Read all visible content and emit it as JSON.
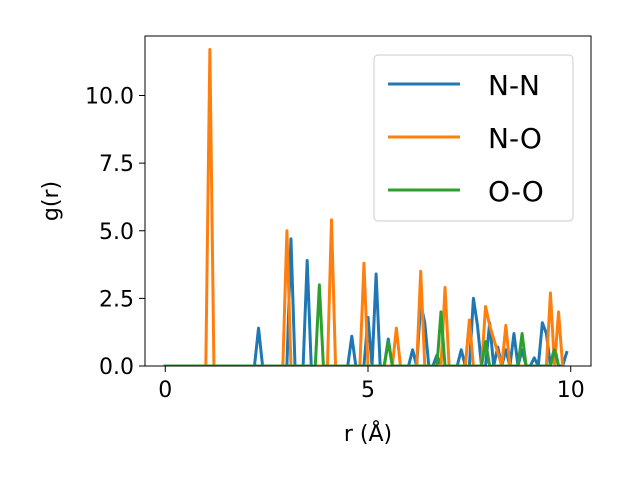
{
  "chart_data": {
    "type": "line",
    "title": "",
    "xlabel": "r (Å)",
    "ylabel": "g(r)",
    "xlim": [
      -0.5,
      10.5
    ],
    "ylim": [
      0,
      12.2
    ],
    "xticks": [
      0,
      5,
      10
    ],
    "xtick_labels": [
      "0",
      "5",
      "10"
    ],
    "yticks": [
      0.0,
      2.5,
      5.0,
      7.5,
      10.0
    ],
    "ytick_labels": [
      "0.0",
      "2.5",
      "5.0",
      "7.5",
      "10.0"
    ],
    "grid": false,
    "legend_position": "top-right",
    "series": [
      {
        "name": "N-N",
        "color": "#1f77b4",
        "x": [
          0,
          2.2,
          2.3,
          2.4,
          3.0,
          3.1,
          3.2,
          3.4,
          3.5,
          3.6,
          4.5,
          4.6,
          4.7,
          4.9,
          5.0,
          5.1,
          5.2,
          5.3,
          5.4,
          5.5,
          5.6,
          5.7,
          6.0,
          6.1,
          6.2,
          6.3,
          6.4,
          6.5,
          6.6,
          6.7,
          6.8,
          6.9,
          7.2,
          7.3,
          7.4,
          7.5,
          7.6,
          7.7,
          7.8,
          7.9,
          8.0,
          8.1,
          8.2,
          8.3,
          8.4,
          8.5,
          8.6,
          8.7,
          8.8,
          8.9,
          9.0,
          9.1,
          9.2,
          9.3,
          9.4,
          9.5,
          9.6,
          9.7,
          9.8,
          9.9
        ],
        "y": [
          0,
          0,
          1.4,
          0,
          0,
          4.7,
          0,
          0,
          3.9,
          0,
          0,
          1.1,
          0,
          0,
          1.8,
          0,
          3.4,
          0,
          0,
          1.0,
          0,
          0,
          0,
          0.6,
          0,
          2.3,
          1.6,
          0,
          0,
          0.4,
          0,
          0,
          0,
          0.6,
          0,
          0,
          2.5,
          1.5,
          0,
          0,
          1.6,
          0,
          0.7,
          0,
          0.6,
          0,
          1.2,
          0,
          0.6,
          0,
          0,
          0.3,
          0,
          1.6,
          1.2,
          0,
          0.7,
          0,
          0,
          0.5
        ]
      },
      {
        "name": "N-O",
        "color": "#ff7f0e",
        "x": [
          0,
          1.0,
          1.1,
          1.2,
          2.9,
          3.0,
          3.1,
          3.9,
          4.0,
          4.1,
          4.2,
          4.8,
          4.9,
          5.0,
          5.6,
          5.7,
          5.8,
          6.2,
          6.3,
          6.4,
          6.8,
          6.9,
          7.0,
          7.4,
          7.5,
          7.6,
          7.8,
          7.9,
          8.0,
          8.3,
          8.4,
          8.5,
          9.4,
          9.5,
          9.6,
          9.7,
          9.8
        ],
        "y": [
          0,
          0,
          11.7,
          0,
          0,
          5.0,
          0,
          0,
          0,
          5.4,
          0,
          0,
          3.8,
          0,
          0,
          1.4,
          0,
          0,
          3.5,
          0,
          0,
          2.9,
          0,
          0,
          1.7,
          0,
          0,
          2.2,
          1.5,
          0,
          1.5,
          0,
          0,
          2.7,
          0,
          2.0,
          0
        ]
      },
      {
        "name": "O-O",
        "color": "#2ca02c",
        "x": [
          0,
          3.7,
          3.8,
          3.9,
          5.4,
          5.5,
          5.6,
          6.7,
          6.8,
          6.9,
          7.8,
          7.9,
          8.0,
          8.7,
          8.8,
          8.9,
          9.5,
          9.6,
          9.7
        ],
        "y": [
          0,
          0,
          3.0,
          0,
          0,
          0.9,
          0,
          0,
          2.0,
          0,
          0,
          0.9,
          0,
          0,
          1.2,
          0,
          0,
          0.6,
          0
        ]
      }
    ]
  }
}
